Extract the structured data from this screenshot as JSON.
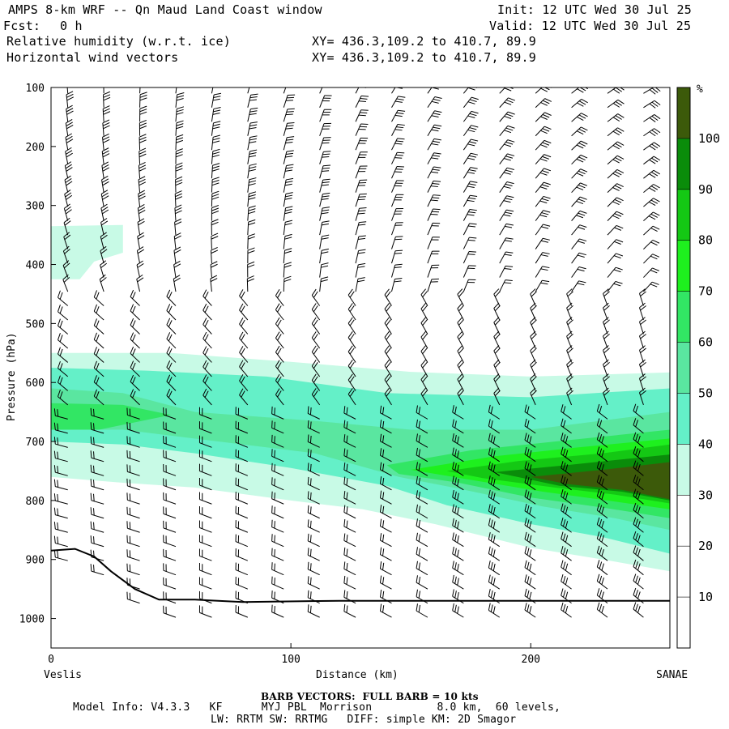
{
  "header": {
    "title": "AMPS 8-km WRF -- Qn Maud Land Coast window",
    "forecast_label": "Fcst:",
    "forecast_value": "0 h",
    "init": "Init: 12 UTC Wed 30 Jul 25",
    "valid": "Valid: 12 UTC Wed 30 Jul 25",
    "field1": "Relative humidity (w.r.t. ice)",
    "field2": "Horizontal wind vectors",
    "xy1": "XY= 436.3,109.2 to 410.7, 89.9",
    "xy2": "XY= 436.3,109.2 to 410.7, 89.9"
  },
  "footer": {
    "barb_note": "BARB VECTORS:  FULL BARB = 10 kts",
    "model_line1": "Model Info: V4.3.3   KF      MYJ PBL  Morrison          8.0 km,  60 levels,",
    "model_line2": "LW: RRTM SW: RRTMG   DIFF: simple KM: 2D Smagor"
  },
  "chart_data": {
    "type": "heatmap",
    "ylabel": "Pressure (hPa)",
    "xlabel": "Distance (km)",
    "x_start_label": "Veslis",
    "x_end_label": "SANAE",
    "xlim": [
      0,
      258
    ],
    "ylim": [
      1050,
      100
    ],
    "x_ticks": [
      0,
      100,
      200
    ],
    "y_ticks": [
      100,
      200,
      300,
      400,
      500,
      600,
      700,
      800,
      900,
      1000
    ],
    "colorbar": {
      "unit": "%",
      "levels": [
        10,
        20,
        30,
        40,
        50,
        60,
        70,
        80,
        90,
        100
      ],
      "colors": [
        "#ffffff",
        "#ffffff",
        "#ffffff",
        "#c8fae6",
        "#64f0c8",
        "#5ae6a0",
        "#32e664",
        "#1ef01e",
        "#14c814",
        "#0a8c0a",
        "#3c5a0a"
      ]
    },
    "terrain_profile": [
      {
        "x": 0,
        "p": 885
      },
      {
        "x": 10,
        "p": 882
      },
      {
        "x": 18,
        "p": 895
      },
      {
        "x": 25,
        "p": 920
      },
      {
        "x": 35,
        "p": 950
      },
      {
        "x": 45,
        "p": 968
      },
      {
        "x": 60,
        "p": 968
      },
      {
        "x": 80,
        "p": 972
      },
      {
        "x": 120,
        "p": 970
      },
      {
        "x": 200,
        "p": 970
      },
      {
        "x": 258,
        "p": 970
      }
    ],
    "rh_regions": [
      {
        "level": 30,
        "points": [
          [
            0,
            335
          ],
          [
            30,
            333
          ],
          [
            30,
            380
          ],
          [
            18,
            395
          ],
          [
            12,
            425
          ],
          [
            0,
            425
          ]
        ]
      },
      {
        "level": 30,
        "points": [
          [
            0,
            550
          ],
          [
            50,
            550
          ],
          [
            100,
            565
          ],
          [
            150,
            582
          ],
          [
            200,
            590
          ],
          [
            258,
            583
          ],
          [
            258,
            920
          ],
          [
            230,
            900
          ],
          [
            200,
            880
          ],
          [
            160,
            840
          ],
          [
            130,
            815
          ],
          [
            100,
            800
          ],
          [
            60,
            778
          ],
          [
            30,
            770
          ],
          [
            0,
            760
          ]
        ]
      },
      {
        "level": 40,
        "points": [
          [
            0,
            575
          ],
          [
            40,
            580
          ],
          [
            90,
            590
          ],
          [
            140,
            618
          ],
          [
            200,
            625
          ],
          [
            258,
            610
          ],
          [
            258,
            890
          ],
          [
            230,
            862
          ],
          [
            200,
            840
          ],
          [
            165,
            808
          ],
          [
            140,
            775
          ],
          [
            100,
            745
          ],
          [
            60,
            720
          ],
          [
            30,
            705
          ],
          [
            0,
            700
          ]
        ]
      },
      {
        "level": 50,
        "points": [
          [
            0,
            610
          ],
          [
            30,
            618
          ],
          [
            60,
            650
          ],
          [
            110,
            665
          ],
          [
            150,
            680
          ],
          [
            200,
            680
          ],
          [
            258,
            650
          ],
          [
            258,
            850
          ],
          [
            235,
            830
          ],
          [
            205,
            810
          ],
          [
            170,
            780
          ],
          [
            145,
            760
          ],
          [
            110,
            720
          ],
          [
            70,
            700
          ],
          [
            30,
            680
          ],
          [
            0,
            680
          ]
        ]
      },
      {
        "level": 60,
        "points": [
          [
            0,
            635
          ],
          [
            30,
            638
          ],
          [
            50,
            655
          ],
          [
            20,
            680
          ],
          [
            0,
            680
          ]
        ]
      },
      {
        "level": 60,
        "points": [
          [
            140,
            740
          ],
          [
            175,
            715
          ],
          [
            210,
            700
          ],
          [
            258,
            680
          ],
          [
            258,
            830
          ],
          [
            230,
            812
          ],
          [
            200,
            795
          ],
          [
            170,
            770
          ],
          [
            145,
            755
          ]
        ]
      },
      {
        "level": 70,
        "points": [
          [
            150,
            748
          ],
          [
            185,
            725
          ],
          [
            220,
            710
          ],
          [
            258,
            695
          ],
          [
            258,
            815
          ],
          [
            232,
            800
          ],
          [
            205,
            785
          ],
          [
            175,
            765
          ]
        ]
      },
      {
        "level": 80,
        "points": [
          [
            165,
            750
          ],
          [
            195,
            733
          ],
          [
            230,
            720
          ],
          [
            258,
            705
          ],
          [
            258,
            805
          ],
          [
            235,
            790
          ],
          [
            210,
            778
          ],
          [
            180,
            762
          ]
        ]
      },
      {
        "level": 90,
        "points": [
          [
            185,
            752
          ],
          [
            215,
            740
          ],
          [
            258,
            722
          ],
          [
            258,
            800
          ],
          [
            238,
            785
          ],
          [
            212,
            775
          ]
        ]
      },
      {
        "level": 100,
        "points": [
          [
            200,
            760
          ],
          [
            230,
            748
          ],
          [
            258,
            735
          ],
          [
            258,
            798
          ],
          [
            238,
            782
          ],
          [
            215,
            772
          ]
        ]
      }
    ],
    "wind_barbs": {
      "columns_x": [
        7,
        22,
        37,
        52,
        67,
        82,
        97,
        112,
        127,
        142,
        157,
        172,
        187,
        202,
        217,
        232,
        247
      ],
      "levels_hPa_range": [
        110,
        1000
      ],
      "note": "barbs drawn per column and level; speed in kts"
    }
  }
}
